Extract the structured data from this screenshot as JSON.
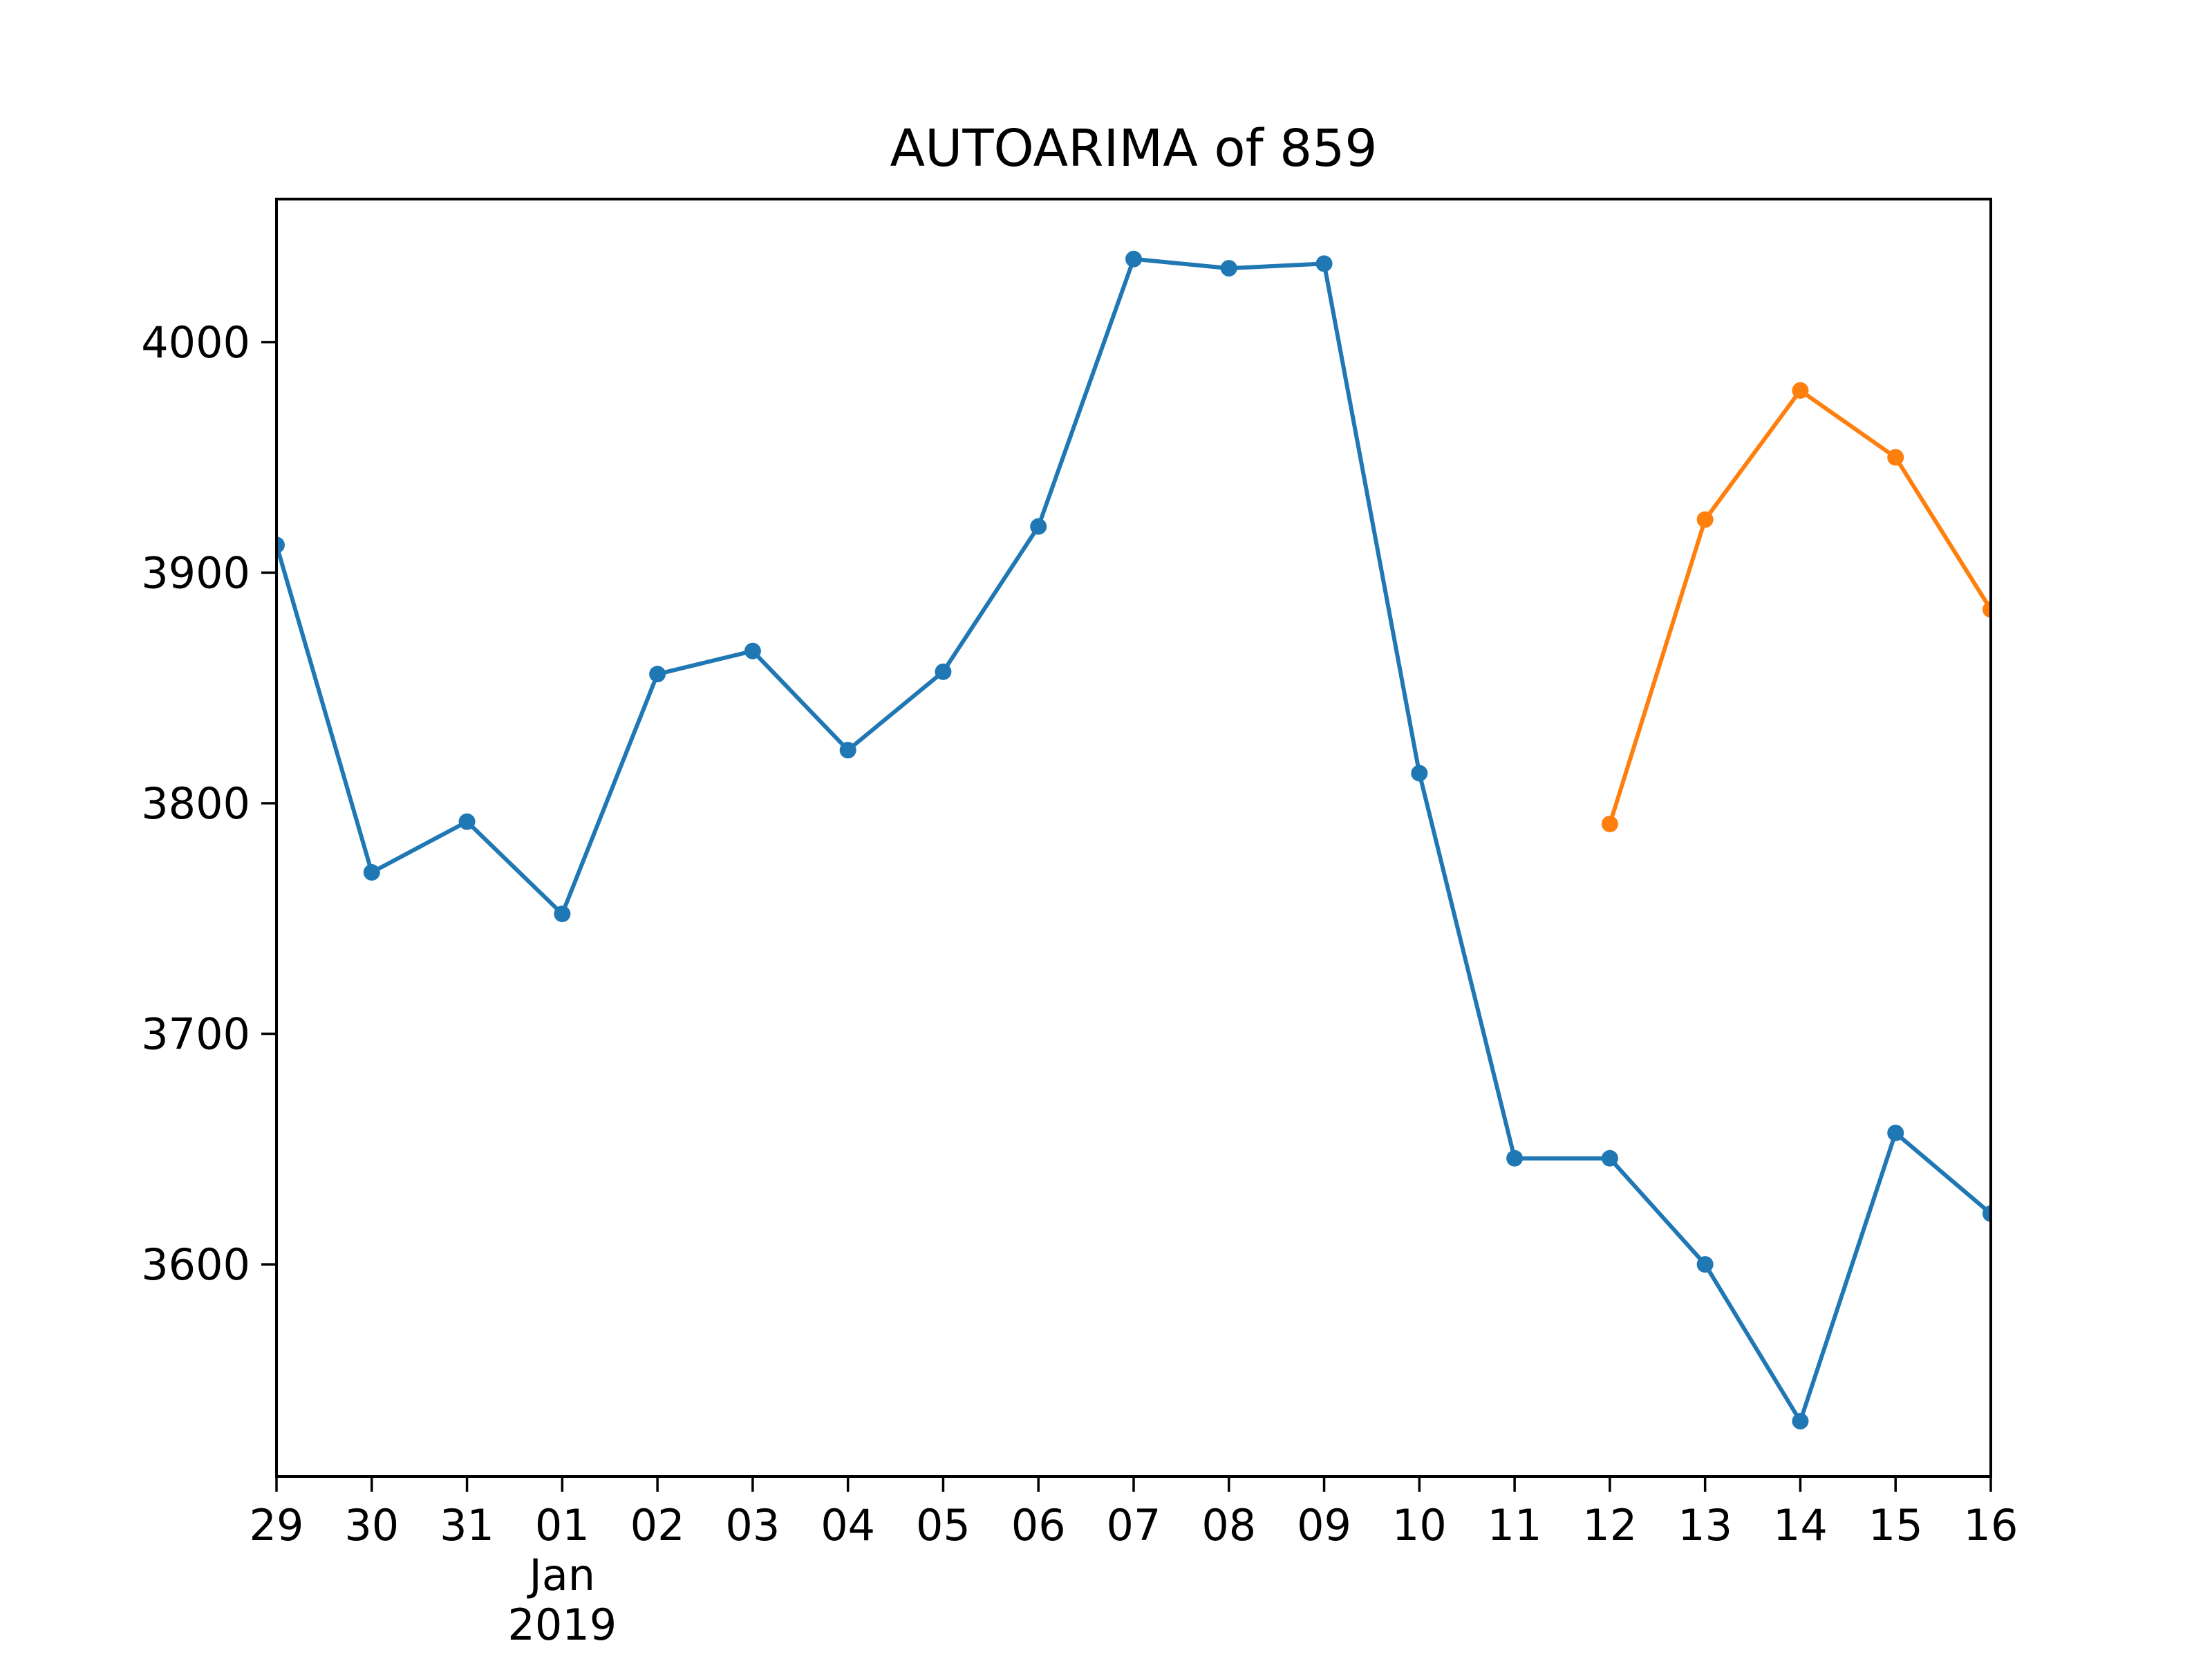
{
  "chart_data": {
    "type": "line",
    "title": "AUTOARIMA of 859",
    "xlabel": "",
    "ylabel": "",
    "x_ticks": [
      "29",
      "30",
      "31",
      "01",
      "02",
      "03",
      "04",
      "05",
      "06",
      "07",
      "08",
      "09",
      "10",
      "11",
      "12",
      "13",
      "14",
      "15",
      "16"
    ],
    "x_secondary_labels": [
      {
        "tick": "01",
        "lines": [
          "Jan",
          "2019"
        ]
      }
    ],
    "y_ticks": [
      3600,
      3700,
      3800,
      3900,
      4000
    ],
    "ylim": [
      3508,
      4062
    ],
    "grid": false,
    "legend": "none",
    "series": [
      {
        "color": "#1f77b4",
        "x": [
          "2018-12-29",
          "2018-12-30",
          "2018-12-31",
          "2019-01-01",
          "2019-01-02",
          "2019-01-03",
          "2019-01-04",
          "2019-01-05",
          "2019-01-06",
          "2019-01-07",
          "2019-01-08",
          "2019-01-09",
          "2019-01-10",
          "2019-01-11",
          "2019-01-12",
          "2019-01-13",
          "2019-01-14",
          "2019-01-15",
          "2019-01-16"
        ],
        "values": [
          3912,
          3770,
          3792,
          3752,
          3856,
          3866,
          3823,
          3857,
          3920,
          4036,
          4032,
          4034,
          3813,
          3646,
          3646,
          3600,
          3532,
          3657,
          3622
        ]
      },
      {
        "color": "#ff7f0e",
        "x": [
          "2019-01-12",
          "2019-01-13",
          "2019-01-14",
          "2019-01-15",
          "2019-01-16"
        ],
        "values": [
          3791,
          3923,
          3979,
          3950,
          3884
        ]
      }
    ]
  }
}
